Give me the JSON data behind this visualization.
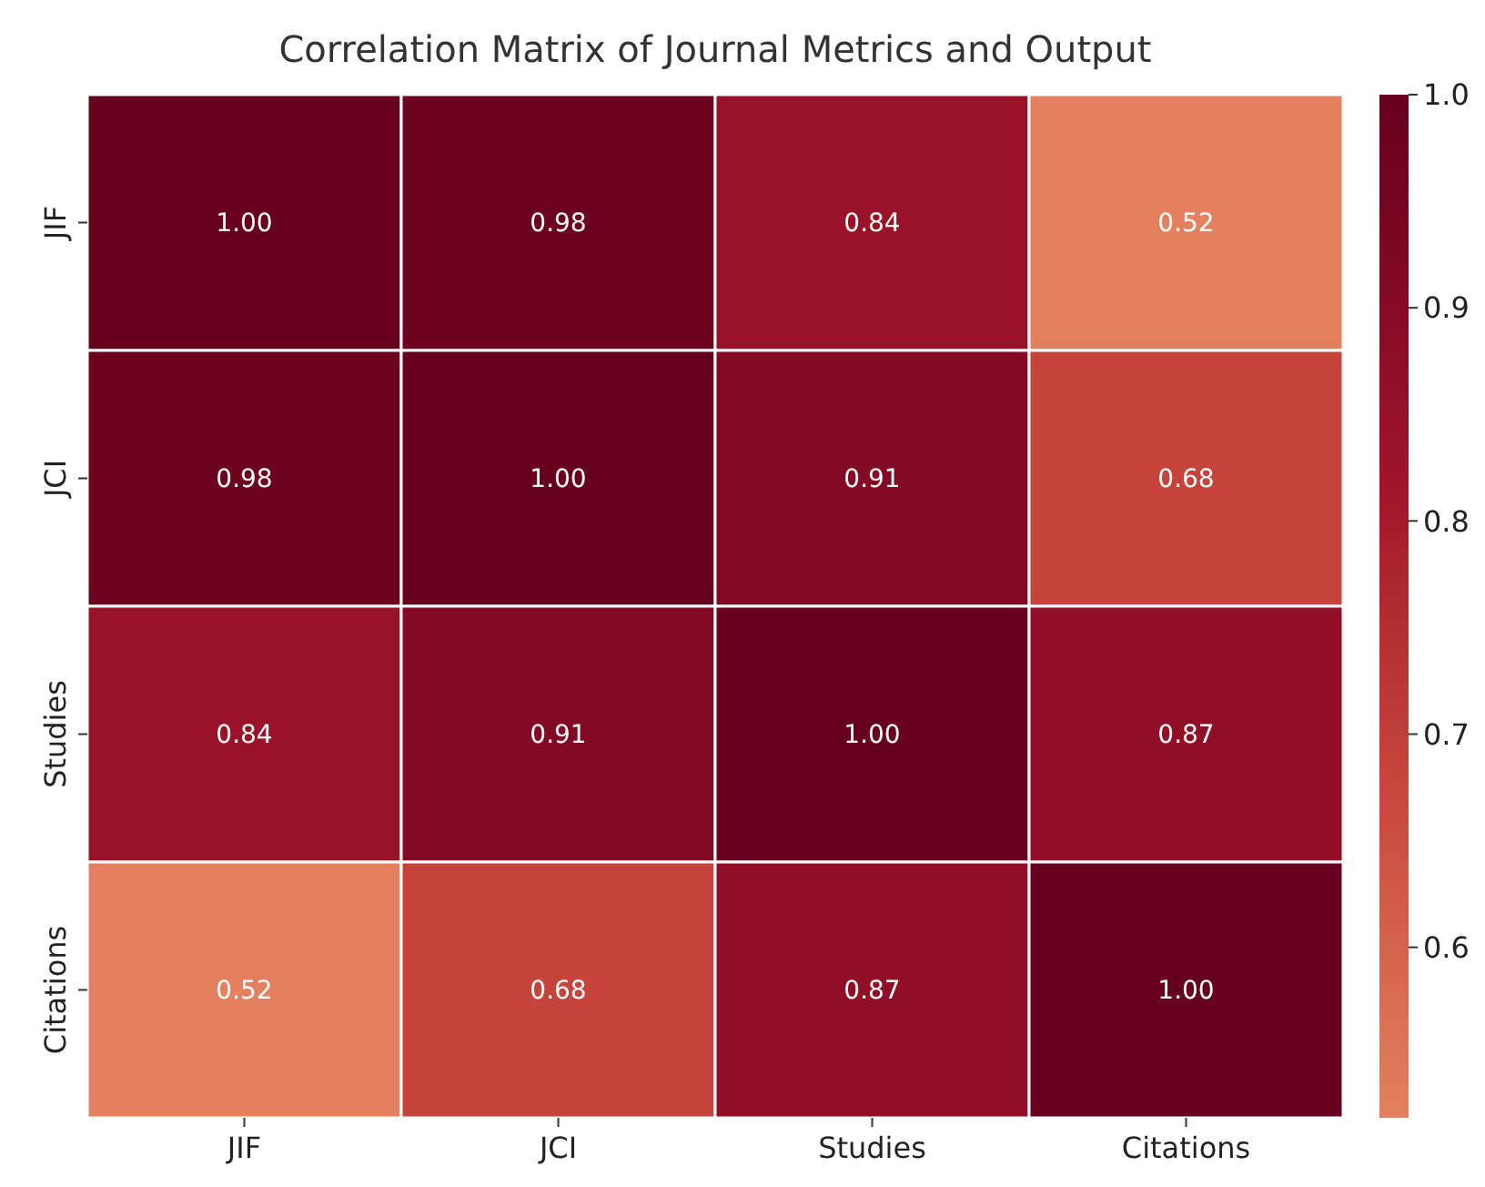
{
  "chart_data": {
    "type": "heatmap",
    "title": "Correlation Matrix of Journal Metrics and Output",
    "categories": [
      "JIF",
      "JCI",
      "Studies",
      "Citations"
    ],
    "y_categories": [
      "JIF",
      "JCI",
      "Studies",
      "Citations"
    ],
    "cells": [
      [
        1.0,
        0.98,
        0.84,
        0.52
      ],
      [
        0.98,
        1.0,
        0.91,
        0.68
      ],
      [
        0.84,
        0.91,
        1.0,
        0.87
      ],
      [
        0.52,
        0.68,
        0.87,
        1.0
      ]
    ],
    "cell_labels": [
      [
        "1.00",
        "0.98",
        "0.84",
        "0.52"
      ],
      [
        "0.98",
        "1.00",
        "0.91",
        "0.68"
      ],
      [
        "0.84",
        "0.91",
        "1.00",
        "0.87"
      ],
      [
        "0.52",
        "0.68",
        "0.87",
        "1.00"
      ]
    ],
    "clim": [
      0.52,
      1.0
    ],
    "cticks": [
      0.6,
      0.7,
      0.8,
      0.9,
      {
        "value": 1.0,
        "label": "1.0"
      }
    ]
  }
}
